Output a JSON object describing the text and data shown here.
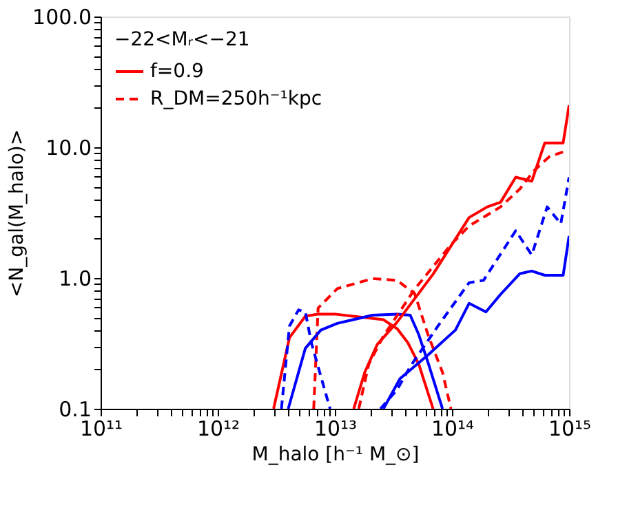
{
  "chart_data": {
    "type": "line",
    "xlabel": "M_halo [h⁻¹ M_⊙]",
    "ylabel": "<N_gal(M_halo)>",
    "legend_title": "−22<Mᵣ<−21",
    "legend": "top left",
    "log": "xy",
    "grid": false,
    "xlim": [
      100000000000.0,
      1000000000000000.0
    ],
    "ylim": [
      0.1,
      100
    ],
    "xticks": [
      {
        "value": 100000000000.0,
        "label": "10¹¹"
      },
      {
        "value": 200000000000.0,
        "label": null
      },
      {
        "value": 300000000000.0,
        "label": null
      },
      {
        "value": 400000000000.0,
        "label": null
      },
      {
        "value": 500000000000.0,
        "label": null
      },
      {
        "value": 600000000000.0,
        "label": null
      },
      {
        "value": 700000000000.0,
        "label": null
      },
      {
        "value": 800000000000.0,
        "label": null
      },
      {
        "value": 900000000000.0,
        "label": null
      },
      {
        "value": 1000000000000.0,
        "label": "10¹²"
      },
      {
        "value": 2000000000000.0,
        "label": null
      },
      {
        "value": 3000000000000.0,
        "label": null
      },
      {
        "value": 4000000000000.0,
        "label": null
      },
      {
        "value": 5000000000000.0,
        "label": null
      },
      {
        "value": 6000000000000.0,
        "label": null
      },
      {
        "value": 7000000000000.0,
        "label": null
      },
      {
        "value": 8000000000000.0,
        "label": null
      },
      {
        "value": 9000000000000.0,
        "label": null
      },
      {
        "value": 10000000000000.0,
        "label": "10¹³"
      },
      {
        "value": 20000000000000.0,
        "label": null
      },
      {
        "value": 30000000000000.0,
        "label": null
      },
      {
        "value": 40000000000000.0,
        "label": null
      },
      {
        "value": 50000000000000.0,
        "label": null
      },
      {
        "value": 60000000000000.0,
        "label": null
      },
      {
        "value": 70000000000000.0,
        "label": null
      },
      {
        "value": 80000000000000.0,
        "label": null
      },
      {
        "value": 90000000000000.0,
        "label": null
      },
      {
        "value": 100000000000000.0,
        "label": "10¹⁴"
      },
      {
        "value": 200000000000000.0,
        "label": null
      },
      {
        "value": 300000000000000.0,
        "label": null
      },
      {
        "value": 400000000000000.0,
        "label": null
      },
      {
        "value": 500000000000000.0,
        "label": null
      },
      {
        "value": 600000000000000.0,
        "label": null
      },
      {
        "value": 700000000000000.0,
        "label": null
      },
      {
        "value": 800000000000000.0,
        "label": null
      },
      {
        "value": 900000000000000.0,
        "label": null
      },
      {
        "value": 1000000000000000.0,
        "label": "10¹⁵"
      }
    ],
    "yticks": [
      {
        "value": 0.1,
        "label": "0.1"
      },
      {
        "value": 0.2,
        "label": null
      },
      {
        "value": 0.3,
        "label": null
      },
      {
        "value": 0.4,
        "label": null
      },
      {
        "value": 0.5,
        "label": null
      },
      {
        "value": 0.6,
        "label": null
      },
      {
        "value": 0.7,
        "label": null
      },
      {
        "value": 0.8,
        "label": null
      },
      {
        "value": 0.9,
        "label": null
      },
      {
        "value": 1,
        "label": "1.0"
      },
      {
        "value": 2,
        "label": null
      },
      {
        "value": 3,
        "label": null
      },
      {
        "value": 4,
        "label": null
      },
      {
        "value": 5,
        "label": null
      },
      {
        "value": 6,
        "label": null
      },
      {
        "value": 7,
        "label": null
      },
      {
        "value": 8,
        "label": null
      },
      {
        "value": 9,
        "label": null
      },
      {
        "value": 10,
        "label": "10.0"
      },
      {
        "value": 20,
        "label": null
      },
      {
        "value": 30,
        "label": null
      },
      {
        "value": 40,
        "label": null
      },
      {
        "value": 50,
        "label": null
      },
      {
        "value": 60,
        "label": null
      },
      {
        "value": 70,
        "label": null
      },
      {
        "value": 80,
        "label": null
      },
      {
        "value": 90,
        "label": null
      },
      {
        "value": 100,
        "label": "100.0"
      }
    ],
    "series": [
      {
        "name": "f=0.9",
        "color": "#ff0000",
        "line_style": "solid",
        "x": [
          3000000000000.0,
          4100000000000.0,
          5600000000000.0,
          7200000000000.0,
          10000000000000.0,
          26000000000000.0,
          34000000000000.0,
          42000000000000.0,
          52000000000000.0,
          69000000000000.0
        ],
        "values": [
          0.1,
          0.35,
          0.51,
          0.53,
          0.53,
          0.48,
          0.41,
          0.32,
          0.22,
          0.1
        ]
      },
      {
        "name": "R_DM=250h⁻¹kpc",
        "color": "#ff0000",
        "line_style": "dashed",
        "x": [
          6600000000000.0,
          7200000000000.0,
          10500000000000.0,
          21000000000000.0,
          34000000000000.0,
          48000000000000.0,
          63000000000000.0,
          83000000000000.0,
          98000000000000.0
        ],
        "values": [
          0.1,
          0.59,
          0.83,
          0.99,
          0.96,
          0.76,
          0.36,
          0.19,
          0.1
        ]
      },
      {
        "color": "#0000ff",
        "line_style": "solid",
        "x": [
          4000000000000.0,
          5600000000000.0,
          7600000000000.0,
          10500000000000.0,
          21000000000000.0,
          34000000000000.0,
          44000000000000.0,
          52000000000000.0,
          63000000000000.0,
          83000000000000.0
        ],
        "values": [
          0.1,
          0.29,
          0.4,
          0.45,
          0.52,
          0.53,
          0.52,
          0.37,
          0.22,
          0.1
        ]
      },
      {
        "color": "#0000ff",
        "line_style": "dashed",
        "x": [
          3500000000000.0,
          4100000000000.0,
          4900000000000.0,
          5600000000000.0,
          6300000000000.0,
          9100000000000.0
        ],
        "values": [
          0.1,
          0.43,
          0.57,
          0.55,
          0.32,
          0.1
        ]
      },
      {
        "color": "#ff0000",
        "line_style": "solid",
        "x": [
          14500000000000.0,
          18000000000000.0,
          23000000000000.0,
          34000000000000.0,
          69000000000000.0,
          140000000000000.0,
          200000000000000.0,
          260000000000000.0,
          350000000000000.0,
          480000000000000.0,
          620000000000000.0,
          890000000000000.0,
          1000000000000000.0
        ],
        "values": [
          0.1,
          0.19,
          0.31,
          0.46,
          1.07,
          2.9,
          3.5,
          3.8,
          5.9,
          5.5,
          10.8,
          10.8,
          21
        ]
      },
      {
        "color": "#ff0000",
        "line_style": "dashed",
        "x": [
          16000000000000.0,
          19500000000000.0,
          26000000000000.0,
          48000000000000.0,
          98000000000000.0,
          140000000000000.0,
          260000000000000.0,
          380000000000000.0,
          500000000000000.0,
          680000000000000.0,
          890000000000000.0
        ],
        "values": [
          0.1,
          0.22,
          0.36,
          0.82,
          1.8,
          2.5,
          3.5,
          4.8,
          6.6,
          8.5,
          9.2
        ]
      },
      {
        "color": "#0000ff",
        "line_style": "solid",
        "x": [
          26000000000000.0,
          36000000000000.0,
          63000000000000.0,
          107000000000000.0,
          140000000000000.0,
          195000000000000.0,
          260000000000000.0,
          380000000000000.0,
          480000000000000.0,
          620000000000000.0,
          890000000000000.0,
          1000000000000000.0
        ],
        "values": [
          0.1,
          0.17,
          0.26,
          0.4,
          0.64,
          0.55,
          0.75,
          1.08,
          1.13,
          1.05,
          1.05,
          2.1
        ]
      },
      {
        "color": "#0000ff",
        "line_style": "dashed",
        "x": [
          24500000000000.0,
          34000000000000.0,
          44000000000000.0,
          76000000000000.0,
          140000000000000.0,
          186000000000000.0,
          350000000000000.0,
          480000000000000.0,
          650000000000000.0,
          850000000000000.0,
          1000000000000000.0
        ],
        "values": [
          0.1,
          0.14,
          0.21,
          0.43,
          0.92,
          0.96,
          2.3,
          1.5,
          3.5,
          2.6,
          5.9
        ]
      }
    ]
  }
}
